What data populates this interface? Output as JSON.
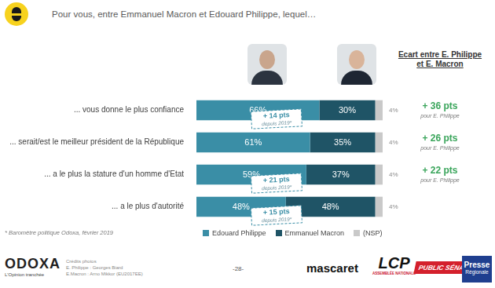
{
  "header": {
    "title": "Pour vous, entre Emmanuel Macron et Edouard Philippe, lequel…"
  },
  "chart_data": {
    "type": "bar",
    "orientation": "horizontal",
    "stacked": true,
    "data_labels": true,
    "grid": false,
    "legend": "bottom",
    "tick_labels": "y",
    "categories": [
      "... vous donne le plus confiance",
      "... serait/est le meilleur président de la République",
      "... a le plus la stature d'un homme d'Etat",
      "... a le plus d'autorité"
    ],
    "xlim": [
      0,
      100
    ],
    "series": [
      {
        "name": "Edouard Philippe",
        "color": "#3a8ea6",
        "values": [
          66,
          61,
          59,
          48
        ],
        "value_labels": [
          "66%",
          "61%",
          "59%",
          "48%"
        ]
      },
      {
        "name": "Emmanuel Macron",
        "color": "#1f5466",
        "values": [
          30,
          35,
          37,
          48
        ],
        "value_labels": [
          "30%",
          "35%",
          "37%",
          "48%"
        ]
      },
      {
        "name": "(NSP)",
        "color": "#c9c9c9",
        "values": [
          4,
          4,
          4,
          4
        ],
        "value_labels": [
          "4%",
          "4%",
          "4%",
          "4%"
        ]
      }
    ],
    "annotations": {
      "changes": [
        {
          "label": "+ 14 pts",
          "note": "depuis 2019*"
        },
        null,
        {
          "label": "+ 21 pts",
          "note": "depuis 2019*"
        },
        {
          "label": "+ 15 pts",
          "note": "depuis 2019*"
        }
      ],
      "gap_header": [
        "Ecart entre E. Philippe",
        "et E. Macron"
      ],
      "gaps": [
        {
          "label": "+ 36 pts",
          "note": "pour E. Philippe"
        },
        {
          "label": "+ 26 pts",
          "note": "pour E. Philippe"
        },
        {
          "label": "+ 22 pts",
          "note": "pour E. Philippe"
        },
        null
      ]
    }
  },
  "footnote": "* Baromètre politique Odoxa, février 2019",
  "footer": {
    "brand": "ODOXA",
    "tagline": "L'Opinion tranchée",
    "credits": [
      "Crédits photos",
      "E. Philippe : Georges Biard",
      "E.Macron : Arno Mikkor (EU2017EE)"
    ],
    "page": "-28-",
    "partners": [
      {
        "text": "mascaret"
      },
      {
        "text": "LCP",
        "sub": "ASSEMBLÉE NATIONALE"
      },
      {
        "text": "PUBLIC SÉNAT"
      },
      {
        "text": "Presse",
        "sub": "Régionale"
      }
    ]
  }
}
